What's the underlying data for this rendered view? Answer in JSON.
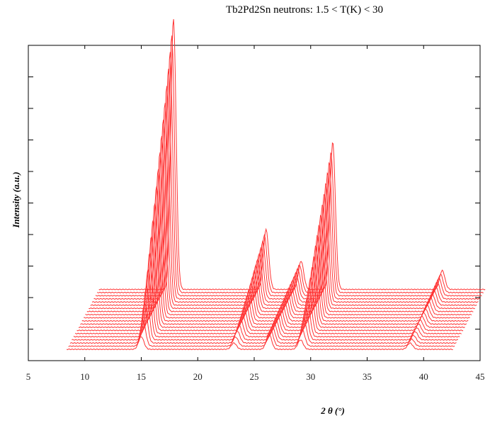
{
  "chart_data": {
    "type": "line",
    "title": "Tb2Pd2Sn neutrons: 1.5 < T(K) < 30",
    "xlabel": "2 θ (°)",
    "ylabel": "Intensity (a.u.)",
    "xlim": [
      5,
      45
    ],
    "x_ticks": [
      "5",
      "10",
      "15",
      "20",
      "25",
      "30",
      "35",
      "40",
      "45"
    ],
    "y_tick_count": 10,
    "style": "waterfall",
    "line_color": "#ff3333",
    "grid": false,
    "series_count": 20,
    "peaks": [
      {
        "position": 15.0,
        "base_height": 0.04,
        "top_height": 0.86
      },
      {
        "position": 23.2,
        "base_height": 0.02,
        "top_height": 0.19
      },
      {
        "position": 26.3,
        "base_height": 0.05,
        "top_height": 0.09
      },
      {
        "position": 29.1,
        "base_height": 0.03,
        "top_height": 0.47
      },
      {
        "position": 38.8,
        "base_height": 0.02,
        "top_height": 0.06
      }
    ]
  }
}
